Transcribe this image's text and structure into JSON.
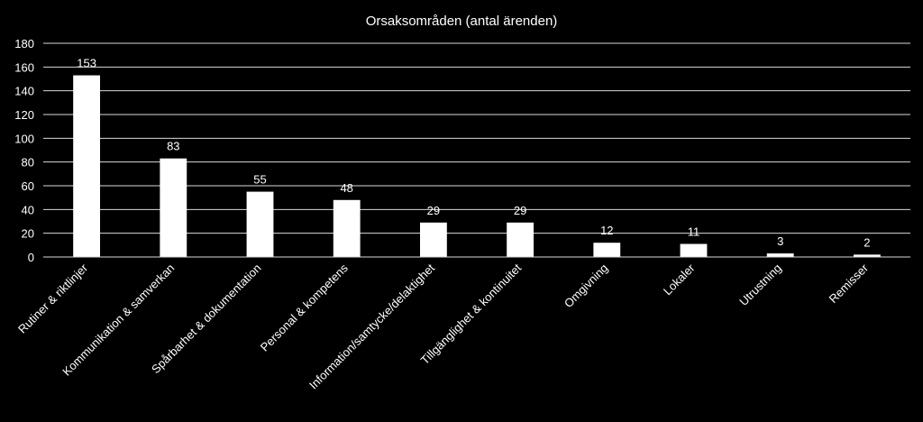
{
  "chart_data": {
    "type": "bar",
    "title": "Orsaksområden (antal ärenden)",
    "xlabel": "",
    "ylabel": "",
    "ylim": [
      0,
      180
    ],
    "yticks": [
      0,
      20,
      40,
      60,
      80,
      100,
      120,
      140,
      160,
      180
    ],
    "grid": true,
    "legend": "none",
    "categories": [
      "Rutiner & riktlinjer",
      "Kommunikation & samverkan",
      "Spårbarhet & dokumentation",
      "Personal & kompetens",
      "Information/samtycke/delaktighet",
      "Tillgänglighet & kontinuitet",
      "Omgivning",
      "Lokaler",
      "Utrustning",
      "Remisser"
    ],
    "values": [
      153,
      83,
      55,
      48,
      29,
      29,
      12,
      11,
      3,
      2
    ],
    "data_labels": [
      "153",
      "83",
      "55",
      "48",
      "29",
      "29",
      "12",
      "11",
      "3",
      "2"
    ],
    "colors": {
      "background": "#000000",
      "bar": "#ffffff",
      "text": "#ffffff",
      "grid": "#d9d9d9"
    }
  }
}
